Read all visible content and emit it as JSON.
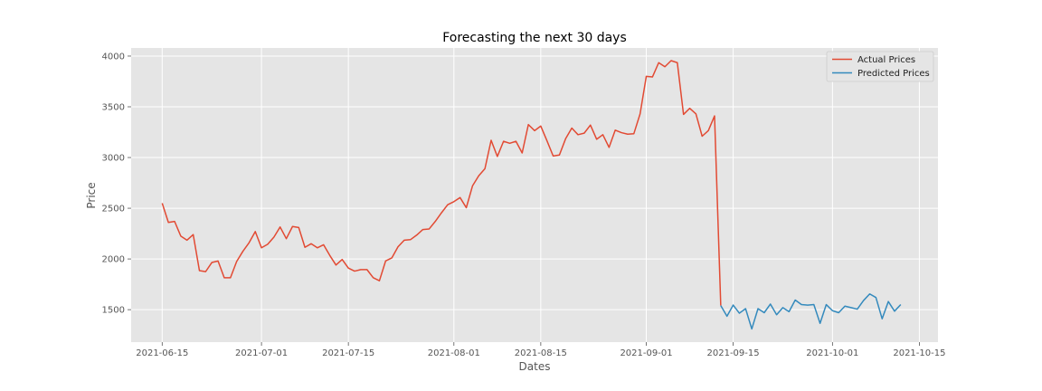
{
  "chart_data": {
    "type": "line",
    "title": "Forecasting the next 30 days",
    "xlabel": "Dates",
    "ylabel": "Price",
    "xlim": [
      "2021-06-10",
      "2021-10-18"
    ],
    "ylim": [
      1180,
      4080
    ],
    "x_ticks": [
      "2021-06-15",
      "2021-07-01",
      "2021-07-15",
      "2021-08-01",
      "2021-08-15",
      "2021-09-01",
      "2021-09-15",
      "2021-10-01",
      "2021-10-15"
    ],
    "y_ticks": [
      1500,
      2000,
      2500,
      3000,
      3500,
      4000
    ],
    "grid": true,
    "legend_position": "top-right",
    "series": [
      {
        "name": "Actual Prices",
        "color": "#e24a33",
        "x": [
          "2021-06-15",
          "2021-06-16",
          "2021-06-17",
          "2021-06-18",
          "2021-06-19",
          "2021-06-20",
          "2021-06-21",
          "2021-06-22",
          "2021-06-23",
          "2021-06-24",
          "2021-06-25",
          "2021-06-26",
          "2021-06-27",
          "2021-06-28",
          "2021-06-29",
          "2021-06-30",
          "2021-07-01",
          "2021-07-02",
          "2021-07-03",
          "2021-07-04",
          "2021-07-05",
          "2021-07-06",
          "2021-07-07",
          "2021-07-08",
          "2021-07-09",
          "2021-07-10",
          "2021-07-11",
          "2021-07-12",
          "2021-07-13",
          "2021-07-14",
          "2021-07-15",
          "2021-07-16",
          "2021-07-17",
          "2021-07-18",
          "2021-07-19",
          "2021-07-20",
          "2021-07-21",
          "2021-07-22",
          "2021-07-23",
          "2021-07-24",
          "2021-07-25",
          "2021-07-26",
          "2021-07-27",
          "2021-07-28",
          "2021-07-29",
          "2021-07-30",
          "2021-07-31",
          "2021-08-01",
          "2021-08-02",
          "2021-08-03",
          "2021-08-04",
          "2021-08-05",
          "2021-08-06",
          "2021-08-07",
          "2021-08-08",
          "2021-08-09",
          "2021-08-10",
          "2021-08-11",
          "2021-08-12",
          "2021-08-13",
          "2021-08-14",
          "2021-08-15",
          "2021-08-16",
          "2021-08-17",
          "2021-08-18",
          "2021-08-19",
          "2021-08-20",
          "2021-08-21",
          "2021-08-22",
          "2021-08-23",
          "2021-08-24",
          "2021-08-25",
          "2021-08-26",
          "2021-08-27",
          "2021-08-28",
          "2021-08-29",
          "2021-08-30",
          "2021-08-31",
          "2021-09-01",
          "2021-09-02",
          "2021-09-03",
          "2021-09-04",
          "2021-09-05",
          "2021-09-06",
          "2021-09-07",
          "2021-09-08",
          "2021-09-09",
          "2021-09-10",
          "2021-09-11",
          "2021-09-12",
          "2021-09-13"
        ],
        "y": [
          2550,
          2360,
          2370,
          2225,
          2185,
          2240,
          1885,
          1875,
          1965,
          1980,
          1815,
          1815,
          1975,
          2075,
          2160,
          2270,
          2110,
          2145,
          2215,
          2315,
          2200,
          2320,
          2310,
          2115,
          2150,
          2110,
          2140,
          2035,
          1940,
          1995,
          1910,
          1880,
          1895,
          1895,
          1815,
          1785,
          1980,
          2010,
          2120,
          2185,
          2190,
          2235,
          2290,
          2295,
          2370,
          2455,
          2535,
          2565,
          2605,
          2505,
          2720,
          2820,
          2890,
          3170,
          3010,
          3160,
          3140,
          3160,
          3045,
          3325,
          3265,
          3310,
          3165,
          3015,
          3025,
          3185,
          3290,
          3225,
          3240,
          3320,
          3180,
          3225,
          3100,
          3270,
          3245,
          3230,
          3235,
          3430,
          3800,
          3795,
          3935,
          3895,
          3955,
          3935,
          3425,
          3485,
          3430,
          3210,
          3265,
          3410,
          1540
        ]
      },
      {
        "name": "Predicted Prices",
        "color": "#348abd",
        "x": [
          "2021-09-13",
          "2021-09-14",
          "2021-09-15",
          "2021-09-16",
          "2021-09-17",
          "2021-09-18",
          "2021-09-19",
          "2021-09-20",
          "2021-09-21",
          "2021-09-22",
          "2021-09-23",
          "2021-09-24",
          "2021-09-25",
          "2021-09-26",
          "2021-09-27",
          "2021-09-28",
          "2021-09-29",
          "2021-09-30",
          "2021-10-01",
          "2021-10-02",
          "2021-10-03",
          "2021-10-04",
          "2021-10-05",
          "2021-10-06",
          "2021-10-07",
          "2021-10-08",
          "2021-10-09",
          "2021-10-10",
          "2021-10-11",
          "2021-10-12"
        ],
        "y": [
          1540,
          1435,
          1545,
          1465,
          1510,
          1310,
          1510,
          1470,
          1555,
          1450,
          1520,
          1480,
          1595,
          1550,
          1545,
          1550,
          1365,
          1550,
          1490,
          1470,
          1535,
          1520,
          1505,
          1590,
          1655,
          1620,
          1410,
          1580,
          1485,
          1550
        ]
      }
    ]
  }
}
